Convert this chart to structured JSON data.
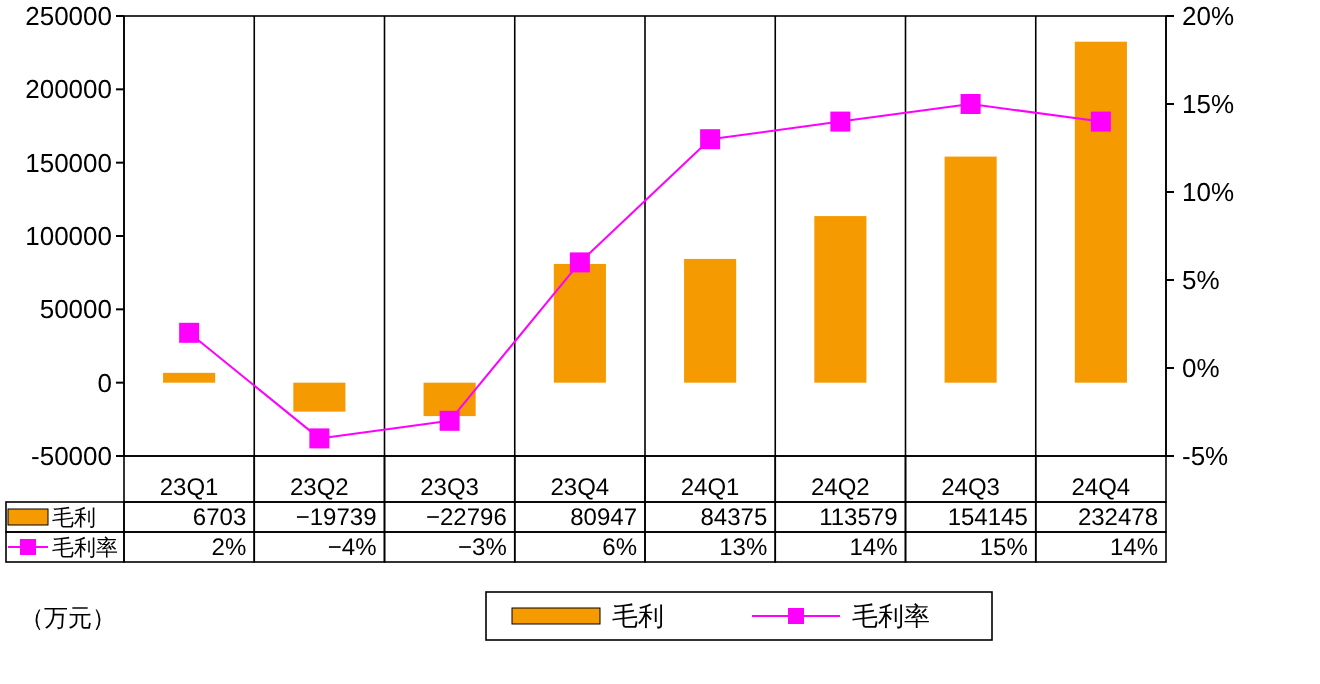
{
  "chart_data": {
    "type": "bar",
    "categories": [
      "23Q1",
      "23Q2",
      "23Q3",
      "23Q4",
      "24Q1",
      "24Q2",
      "24Q3",
      "24Q4"
    ],
    "series": [
      {
        "name": "毛利",
        "color": "#f59a00",
        "values": [
          6703,
          -19739,
          -22796,
          80947,
          84375,
          113579,
          154145,
          232478
        ],
        "value_labels": [
          "6703",
          "−19739",
          "−22796",
          "80947",
          "84375",
          "113579",
          "154145",
          "232478"
        ]
      },
      {
        "name": "毛利率",
        "type": "line",
        "axis": "y2",
        "color": "#ff00ff",
        "marker": "square",
        "values": [
          2,
          -4,
          -3,
          6,
          13,
          14,
          15,
          14
        ],
        "value_labels": [
          "2%",
          "−4%",
          "−3%",
          "6%",
          "13%",
          "14%",
          "15%",
          "14%"
        ]
      }
    ],
    "ylim": [
      -50000,
      250000
    ],
    "yticks": [
      -50000,
      0,
      50000,
      100000,
      150000,
      200000,
      250000
    ],
    "y2lim": [
      -5,
      20
    ],
    "y2ticks": [
      {
        "value": -5,
        "label": "-5%"
      },
      {
        "value": 0,
        "label": "0%"
      },
      {
        "value": 5,
        "label": "5%"
      },
      {
        "value": 10,
        "label": "10%"
      },
      {
        "value": 15,
        "label": "15%"
      },
      {
        "value": 20,
        "label": "20%"
      }
    ],
    "grid": "x",
    "legend": "bottom",
    "annotations": [
      "（万元）"
    ]
  }
}
